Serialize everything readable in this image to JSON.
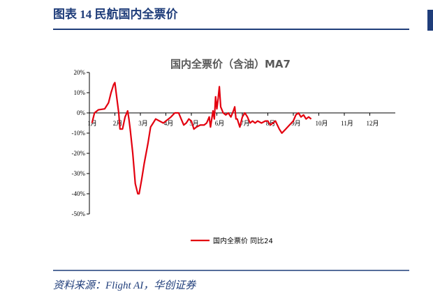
{
  "header": {
    "title": "图表 14 民航国内全票价"
  },
  "chart_data": {
    "type": "line",
    "title": "国内全票价（含油）MA7",
    "xlim": [
      0,
      12
    ],
    "xticks": [
      {
        "value": 0,
        "label": "1月"
      },
      {
        "value": 1,
        "label": "2月"
      },
      {
        "value": 2,
        "label": "3月"
      },
      {
        "value": 3,
        "label": "4月"
      },
      {
        "value": 4,
        "label": "5月"
      },
      {
        "value": 5,
        "label": "6月"
      },
      {
        "value": 6,
        "label": "7月"
      },
      {
        "value": 7,
        "label": "8月"
      },
      {
        "value": 8,
        "label": "9月"
      },
      {
        "value": 9,
        "label": "10月"
      },
      {
        "value": 10,
        "label": "11月"
      },
      {
        "value": 11,
        "label": "12月"
      }
    ],
    "ylim": [
      -50,
      20
    ],
    "yticks": [
      {
        "value": 20,
        "label": "20%"
      },
      {
        "value": 10,
        "label": "10%"
      },
      {
        "value": 0,
        "label": "0%"
      },
      {
        "value": -10,
        "label": "-10%"
      },
      {
        "value": -20,
        "label": "-20%"
      },
      {
        "value": -30,
        "label": "-30%"
      },
      {
        "value": -40,
        "label": "-40%"
      },
      {
        "value": -50,
        "label": "-50%"
      }
    ],
    "x": [
      0.1,
      0.2,
      0.35,
      0.6,
      0.75,
      0.85,
      0.95,
      1.0,
      1.05,
      1.15,
      1.2,
      1.3,
      1.4,
      1.5,
      1.55,
      1.6,
      1.7,
      1.8,
      1.9,
      1.95,
      2.05,
      2.15,
      2.3,
      2.4,
      2.5,
      2.6,
      2.75,
      2.9,
      3.1,
      3.2,
      3.35,
      3.5,
      3.6,
      3.7,
      3.8,
      3.9,
      4.0,
      4.1,
      4.2,
      4.35,
      4.5,
      4.6,
      4.7,
      4.75,
      4.8,
      4.85,
      4.9,
      4.95,
      5.0,
      5.05,
      5.1,
      5.15,
      5.25,
      5.35,
      5.45,
      5.55,
      5.65,
      5.7,
      5.75,
      5.8,
      5.9,
      6.0,
      6.1,
      6.2,
      6.3,
      6.4,
      6.5,
      6.6,
      6.75,
      6.9,
      7.0,
      7.1,
      7.2,
      7.3,
      7.45,
      7.55,
      7.7,
      7.85,
      8.0,
      8.1,
      8.2,
      8.3,
      8.4,
      8.5,
      8.6,
      8.7
    ],
    "series": [
      {
        "name": "国内全票价 同比24",
        "color": "#e3000f",
        "values": [
          -5,
          0,
          1.5,
          2,
          5,
          10,
          14,
          15,
          10,
          0,
          -8,
          -8,
          -2,
          1,
          -3,
          -8,
          -20,
          -35,
          -40,
          -40,
          -33,
          -25,
          -15,
          -7,
          -5,
          -3,
          -4,
          -5,
          -3,
          -2,
          0,
          0,
          -3,
          -6,
          -5,
          -3,
          -4,
          -8,
          -7,
          -6,
          -6,
          -5,
          -2,
          -7,
          -3,
          1,
          -3,
          8,
          2,
          7,
          13,
          3,
          0,
          -1,
          0,
          -2,
          1,
          3,
          -3,
          -3,
          -7,
          -2,
          0,
          -2,
          -5,
          -4,
          -5,
          -4,
          -5,
          -4,
          -4,
          -6,
          -5,
          -4,
          -8,
          -10,
          -8,
          -6,
          -4,
          -1,
          0,
          -2,
          -1,
          -3,
          -2,
          -3
        ]
      }
    ]
  },
  "footer": {
    "source": "资料来源：Flight AI，华创证券"
  }
}
